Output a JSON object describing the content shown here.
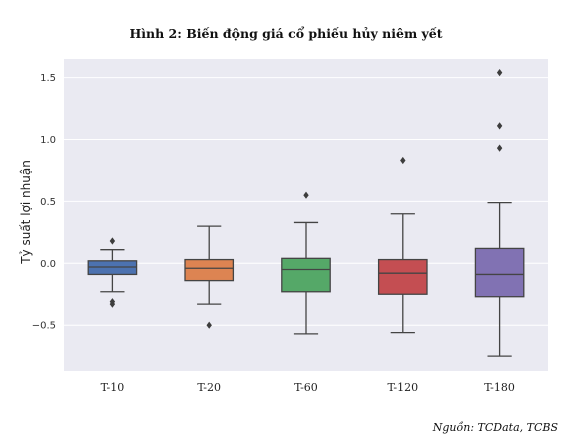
{
  "chart_data": {
    "type": "box",
    "title": "Hình 2: Biến động giá cổ phiếu hủy niêm yết",
    "xlabel": "",
    "ylabel": "Tỷ suất lợi nhuận",
    "ylim": [
      -0.87,
      1.65
    ],
    "yticks": [
      -0.5,
      0.0,
      0.5,
      1.0,
      1.5
    ],
    "ytick_labels": [
      "−0.5",
      "0.0",
      "0.5",
      "1.0",
      "1.5"
    ],
    "grid": true,
    "categories": [
      "T-10",
      "T-20",
      "T-60",
      "T-120",
      "T-180"
    ],
    "boxes": [
      {
        "label": "T-10",
        "whisker_low": -0.23,
        "q1": -0.09,
        "median": -0.03,
        "q3": 0.02,
        "whisker_high": 0.11,
        "outliers": [
          0.18,
          -0.31,
          -0.33
        ],
        "color": "#4c72b0"
      },
      {
        "label": "T-20",
        "whisker_low": -0.33,
        "q1": -0.14,
        "median": -0.04,
        "q3": 0.03,
        "whisker_high": 0.3,
        "outliers": [
          -0.5
        ],
        "color": "#dd8452"
      },
      {
        "label": "T-60",
        "whisker_low": -0.57,
        "q1": -0.23,
        "median": -0.05,
        "q3": 0.04,
        "whisker_high": 0.33,
        "outliers": [
          0.55
        ],
        "color": "#55a868"
      },
      {
        "label": "T-120",
        "whisker_low": -0.56,
        "q1": -0.25,
        "median": -0.08,
        "q3": 0.03,
        "whisker_high": 0.4,
        "outliers": [
          0.83
        ],
        "color": "#c44e52"
      },
      {
        "label": "T-180",
        "whisker_low": -0.75,
        "q1": -0.27,
        "median": -0.09,
        "q3": 0.12,
        "whisker_high": 0.49,
        "outliers": [
          0.93,
          1.11,
          1.54
        ],
        "color": "#8172b3"
      }
    ]
  },
  "source_note": "Nguồn: TCData, TCBS"
}
